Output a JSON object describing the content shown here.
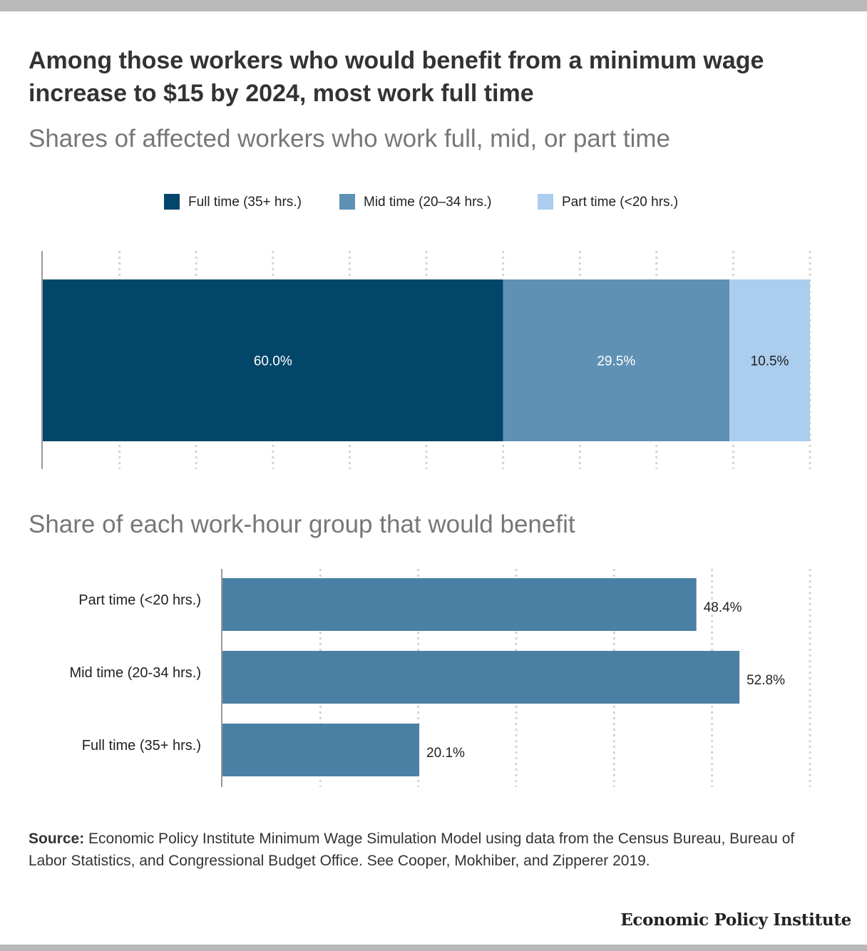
{
  "title": "Among those workers who would benefit from a minimum wage increase to $15 by 2024, most work full time",
  "colors": {
    "full": "#02476a",
    "mid": "#5f91b4",
    "part": "#abcdee",
    "bars2": "#4a80a4",
    "grid": "#d4d4d4",
    "axis": "#999999"
  },
  "legend": [
    {
      "label": "Full time (35+ hrs.)",
      "color": "#02476a"
    },
    {
      "label": "Mid time (20–34 hrs.)",
      "color": "#5f91b4"
    },
    {
      "label": "Part time (<20 hrs.)",
      "color": "#abcdee"
    }
  ],
  "chart_data": [
    {
      "type": "bar",
      "orientation": "horizontal",
      "stacked": true,
      "title": "Shares of affected workers who work full, mid, or part time",
      "series": [
        {
          "name": "Full time (35+ hrs.)",
          "values": [
            60.0
          ],
          "label": "60.0%",
          "color": "#02476a"
        },
        {
          "name": "Mid time (20–34 hrs.)",
          "values": [
            29.5
          ],
          "label": "29.5%",
          "color": "#5f91b4"
        },
        {
          "name": "Part time (<20 hrs.)",
          "values": [
            10.5
          ],
          "label": "10.5%",
          "color": "#abcdee"
        }
      ],
      "xlim": [
        0,
        100
      ],
      "grid": true,
      "legend": "top"
    },
    {
      "type": "bar",
      "orientation": "horizontal",
      "title": "Share of each work-hour group that would benefit",
      "categories": [
        "Part time (<20 hrs.)",
        "Mid time (20-34 hrs.)",
        "Full time (35+ hrs.)"
      ],
      "values": [
        48.4,
        52.8,
        20.1
      ],
      "labels": [
        "48.4%",
        "52.8%",
        "20.1%"
      ],
      "xlim": [
        0,
        60
      ],
      "grid": true
    }
  ],
  "source": {
    "label": "Source:",
    "text": " Economic Policy Institute Minimum Wage Simulation Model using data from the Census Bureau, Bureau of Labor Statistics, and Congressional Budget Office. See Cooper, Mokhiber, and Zipperer 2019."
  },
  "brand": "Economic Policy Institute"
}
